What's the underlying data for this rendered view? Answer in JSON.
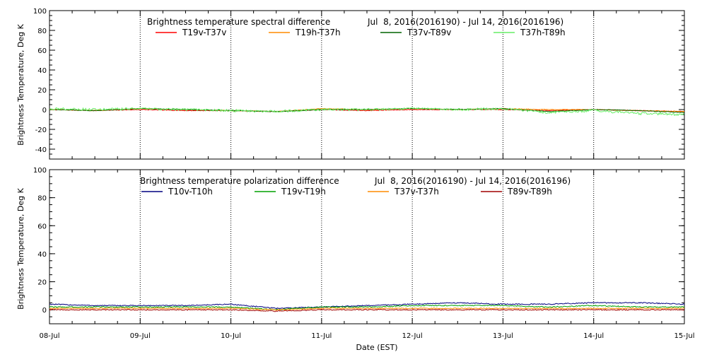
{
  "xlabel": "Date (EST)",
  "x_tick_labels": [
    "08-Jul",
    "09-Jul",
    "10-Jul",
    "11-Jul",
    "12-Jul",
    "13-Jul",
    "14-Jul",
    "15-Jul"
  ],
  "chart_data": [
    {
      "type": "line",
      "title": "Brightness temperature spectral difference",
      "date_range": "Jul  8, 2016(2016190) - Jul 14, 2016(2016196)",
      "ylabel": "Brightness Temperature, Deg K",
      "xlim": [
        "2016-07-08",
        "2016-07-15"
      ],
      "ylim": [
        -50,
        100
      ],
      "yticks": [
        -40,
        -20,
        0,
        20,
        40,
        60,
        80,
        100
      ],
      "grid": "vertical dotted at day boundaries",
      "legend_position": "top",
      "series": [
        {
          "name": "T19v-T37v",
          "color": "#ff0000",
          "x": [
            "2016-07-08 00:00",
            "2016-07-08 12:00",
            "2016-07-09 00:00",
            "2016-07-09 12:00",
            "2016-07-10 00:00",
            "2016-07-10 12:00",
            "2016-07-11 00:00",
            "2016-07-11 12:00",
            "2016-07-12 00:00",
            "2016-07-12 12:00",
            "2016-07-13 00:00",
            "2016-07-13 12:00",
            "2016-07-14 00:00",
            "2016-07-14 12:00",
            "2016-07-15 00:00"
          ],
          "values": [
            0,
            -1,
            0,
            -1,
            -1,
            -2,
            0,
            -1,
            0,
            0,
            0,
            -1,
            0,
            -1,
            -2
          ]
        },
        {
          "name": "T19h-T37h",
          "color": "#ff8c00",
          "x": [
            "2016-07-08 00:00",
            "2016-07-08 12:00",
            "2016-07-09 00:00",
            "2016-07-09 12:00",
            "2016-07-10 00:00",
            "2016-07-10 12:00",
            "2016-07-11 00:00",
            "2016-07-11 12:00",
            "2016-07-12 00:00",
            "2016-07-12 12:00",
            "2016-07-13 00:00",
            "2016-07-13 12:00",
            "2016-07-14 00:00",
            "2016-07-14 12:00",
            "2016-07-15 00:00"
          ],
          "values": [
            0,
            -1,
            1,
            0,
            -1,
            -2,
            1,
            0,
            1,
            0,
            1,
            0,
            0,
            -1,
            -2
          ]
        },
        {
          "name": "T37v-T89v",
          "color": "#006400",
          "x": [
            "2016-07-08 00:00",
            "2016-07-08 12:00",
            "2016-07-09 00:00",
            "2016-07-09 12:00",
            "2016-07-10 00:00",
            "2016-07-10 12:00",
            "2016-07-11 00:00",
            "2016-07-11 12:00",
            "2016-07-12 00:00",
            "2016-07-12 12:00",
            "2016-07-13 00:00",
            "2016-07-13 12:00",
            "2016-07-14 00:00",
            "2016-07-14 12:00",
            "2016-07-15 00:00"
          ],
          "values": [
            0,
            -1,
            1,
            0,
            -1,
            -2,
            0,
            0,
            1,
            0,
            1,
            -2,
            0,
            -1,
            -3
          ]
        },
        {
          "name": "T37h-T89h",
          "color": "#66ee66",
          "x": [
            "2016-07-08 00:00",
            "2016-07-08 12:00",
            "2016-07-09 00:00",
            "2016-07-09 12:00",
            "2016-07-10 00:00",
            "2016-07-10 12:00",
            "2016-07-11 00:00",
            "2016-07-11 12:00",
            "2016-07-12 00:00",
            "2016-07-12 12:00",
            "2016-07-13 00:00",
            "2016-07-13 12:00",
            "2016-07-14 00:00",
            "2016-07-14 12:00",
            "2016-07-15 00:00"
          ],
          "values": [
            1,
            0,
            1,
            0,
            -1,
            -2,
            0,
            0,
            1,
            0,
            1,
            -3,
            -1,
            -4,
            -5
          ]
        }
      ]
    },
    {
      "type": "line",
      "title": "Brightness temperature polarization difference",
      "date_range": "Jul  8, 2016(2016190) - Jul 14, 2016(2016196)",
      "ylabel": "Brightness Temperature, Deg K",
      "xlim": [
        "2016-07-08",
        "2016-07-15"
      ],
      "ylim": [
        -10,
        100
      ],
      "yticks": [
        0,
        20,
        40,
        60,
        80,
        100
      ],
      "grid": "vertical dotted at day boundaries",
      "legend_position": "top",
      "series": [
        {
          "name": "T10v-T10h",
          "color": "#000080",
          "x": [
            "2016-07-08 00:00",
            "2016-07-08 12:00",
            "2016-07-09 00:00",
            "2016-07-09 12:00",
            "2016-07-10 00:00",
            "2016-07-10 12:00",
            "2016-07-11 00:00",
            "2016-07-11 12:00",
            "2016-07-12 00:00",
            "2016-07-12 12:00",
            "2016-07-13 00:00",
            "2016-07-13 12:00",
            "2016-07-14 00:00",
            "2016-07-14 12:00",
            "2016-07-15 00:00"
          ],
          "values": [
            4,
            3,
            3,
            3,
            4,
            1,
            2,
            3,
            4,
            5,
            4,
            4,
            5,
            5,
            4
          ]
        },
        {
          "name": "T19v-T19h",
          "color": "#00a000",
          "x": [
            "2016-07-08 00:00",
            "2016-07-08 12:00",
            "2016-07-09 00:00",
            "2016-07-09 12:00",
            "2016-07-10 00:00",
            "2016-07-10 12:00",
            "2016-07-11 00:00",
            "2016-07-11 12:00",
            "2016-07-12 00:00",
            "2016-07-12 12:00",
            "2016-07-13 00:00",
            "2016-07-13 12:00",
            "2016-07-14 00:00",
            "2016-07-14 12:00",
            "2016-07-15 00:00"
          ],
          "values": [
            2,
            2,
            2,
            2,
            2,
            0,
            2,
            2,
            3,
            3,
            3,
            2,
            3,
            2,
            2
          ]
        },
        {
          "name": "T37v-T37h",
          "color": "#ff8c00",
          "x": [
            "2016-07-08 00:00",
            "2016-07-08 12:00",
            "2016-07-09 00:00",
            "2016-07-09 12:00",
            "2016-07-10 00:00",
            "2016-07-10 12:00",
            "2016-07-11 00:00",
            "2016-07-11 12:00",
            "2016-07-12 00:00",
            "2016-07-12 12:00",
            "2016-07-13 00:00",
            "2016-07-13 12:00",
            "2016-07-14 00:00",
            "2016-07-14 12:00",
            "2016-07-15 00:00"
          ],
          "values": [
            1,
            1,
            1,
            1,
            1,
            0,
            1,
            1,
            1,
            1,
            1,
            1,
            1,
            1,
            1
          ]
        },
        {
          "name": "T89v-T89h",
          "color": "#a00000",
          "x": [
            "2016-07-08 00:00",
            "2016-07-08 12:00",
            "2016-07-09 00:00",
            "2016-07-09 12:00",
            "2016-07-10 00:00",
            "2016-07-10 12:00",
            "2016-07-11 00:00",
            "2016-07-11 12:00",
            "2016-07-12 00:00",
            "2016-07-12 12:00",
            "2016-07-13 00:00",
            "2016-07-13 12:00",
            "2016-07-14 00:00",
            "2016-07-14 12:00",
            "2016-07-15 00:00"
          ],
          "values": [
            0,
            0,
            0,
            0,
            0,
            -1,
            0,
            0,
            0,
            0,
            0,
            0,
            0,
            0,
            0
          ]
        }
      ]
    }
  ]
}
